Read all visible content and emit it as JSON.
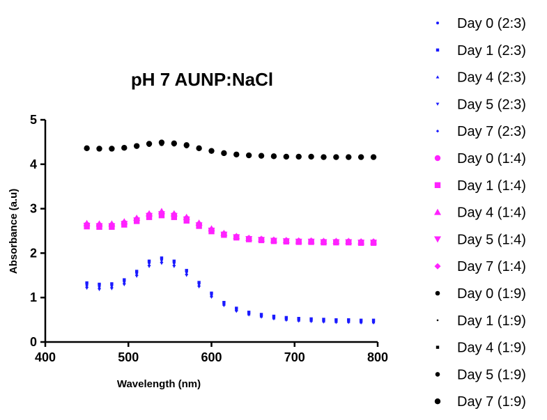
{
  "chart_data": {
    "type": "scatter",
    "title": "pH 7 AUNP:NaCl",
    "xlabel": "Wavelength (nm)",
    "ylabel": "Absorbance (a.u)",
    "xlim": [
      400,
      800
    ],
    "ylim": [
      0,
      5
    ],
    "xticks": [
      400,
      500,
      600,
      700,
      800
    ],
    "yticks": [
      0,
      1,
      2,
      3,
      4,
      5
    ],
    "grid": false,
    "legend_position": "right",
    "x": [
      450,
      465,
      480,
      495,
      510,
      525,
      540,
      555,
      570,
      585,
      600,
      615,
      630,
      645,
      660,
      675,
      690,
      705,
      720,
      735,
      750,
      765,
      780,
      795
    ],
    "series": [
      {
        "name": "Day 0 (2:3)",
        "color": "#1a1aff",
        "marker": "dot-small",
        "values": [
          1.28,
          1.25,
          1.27,
          1.36,
          1.55,
          1.78,
          1.85,
          1.78,
          1.58,
          1.31,
          1.07,
          0.87,
          0.74,
          0.65,
          0.6,
          0.56,
          0.53,
          0.51,
          0.5,
          0.49,
          0.48,
          0.48,
          0.47,
          0.47
        ]
      },
      {
        "name": "Day 1 (2:3)",
        "color": "#1a1aff",
        "marker": "square-small",
        "values": [
          1.33,
          1.3,
          1.31,
          1.4,
          1.59,
          1.82,
          1.89,
          1.82,
          1.61,
          1.34,
          1.1,
          0.89,
          0.76,
          0.67,
          0.62,
          0.58,
          0.55,
          0.53,
          0.52,
          0.51,
          0.5,
          0.5,
          0.49,
          0.49
        ]
      },
      {
        "name": "Day 4 (2:3)",
        "color": "#1a1aff",
        "marker": "triangle-up-small",
        "values": [
          1.25,
          1.22,
          1.24,
          1.33,
          1.52,
          1.74,
          1.81,
          1.74,
          1.54,
          1.28,
          1.04,
          0.85,
          0.72,
          0.63,
          0.58,
          0.54,
          0.51,
          0.49,
          0.48,
          0.47,
          0.46,
          0.46,
          0.45,
          0.45
        ]
      },
      {
        "name": "Day 5 (2:3)",
        "color": "#1a1aff",
        "marker": "triangle-down-small",
        "values": [
          1.21,
          1.18,
          1.2,
          1.29,
          1.48,
          1.7,
          1.77,
          1.7,
          1.5,
          1.24,
          1.01,
          0.82,
          0.69,
          0.61,
          0.56,
          0.52,
          0.49,
          0.47,
          0.46,
          0.45,
          0.44,
          0.44,
          0.43,
          0.43
        ]
      },
      {
        "name": "Day 7 (2:3)",
        "color": "#1a1aff",
        "marker": "diamond-small",
        "values": [
          1.23,
          1.2,
          1.22,
          1.31,
          1.5,
          1.72,
          1.79,
          1.72,
          1.52,
          1.26,
          1.02,
          0.83,
          0.7,
          0.62,
          0.57,
          0.53,
          0.5,
          0.48,
          0.47,
          0.46,
          0.45,
          0.45,
          0.44,
          0.44
        ]
      },
      {
        "name": "Day 0 (1:4)",
        "color": "#ff22ff",
        "marker": "dot",
        "values": [
          2.64,
          2.63,
          2.63,
          2.68,
          2.76,
          2.86,
          2.9,
          2.86,
          2.78,
          2.65,
          2.52,
          2.43,
          2.37,
          2.33,
          2.31,
          2.29,
          2.28,
          2.27,
          2.27,
          2.26,
          2.26,
          2.26,
          2.25,
          2.25
        ]
      },
      {
        "name": "Day 1 (1:4)",
        "color": "#ff22ff",
        "marker": "square",
        "values": [
          2.6,
          2.59,
          2.59,
          2.64,
          2.72,
          2.81,
          2.85,
          2.81,
          2.73,
          2.61,
          2.49,
          2.41,
          2.35,
          2.31,
          2.29,
          2.27,
          2.26,
          2.25,
          2.25,
          2.24,
          2.24,
          2.24,
          2.23,
          2.23
        ]
      },
      {
        "name": "Day 4 (1:4)",
        "color": "#ff22ff",
        "marker": "triangle-up",
        "values": [
          2.67,
          2.66,
          2.66,
          2.71,
          2.79,
          2.89,
          2.94,
          2.89,
          2.81,
          2.68,
          2.55,
          2.45,
          2.38,
          2.34,
          2.32,
          2.3,
          2.29,
          2.28,
          2.28,
          2.27,
          2.27,
          2.27,
          2.26,
          2.26
        ]
      },
      {
        "name": "Day 5 (1:4)",
        "color": "#ff22ff",
        "marker": "triangle-down",
        "values": [
          2.62,
          2.61,
          2.61,
          2.66,
          2.74,
          2.84,
          2.88,
          2.84,
          2.76,
          2.63,
          2.51,
          2.42,
          2.36,
          2.32,
          2.3,
          2.28,
          2.27,
          2.26,
          2.26,
          2.25,
          2.25,
          2.25,
          2.24,
          2.24
        ]
      },
      {
        "name": "Day 7 (1:4)",
        "color": "#ff22ff",
        "marker": "diamond",
        "values": [
          2.63,
          2.62,
          2.62,
          2.67,
          2.75,
          2.85,
          2.89,
          2.85,
          2.77,
          2.64,
          2.52,
          2.43,
          2.37,
          2.33,
          2.31,
          2.29,
          2.28,
          2.27,
          2.27,
          2.26,
          2.26,
          2.26,
          2.25,
          2.25
        ]
      },
      {
        "name": "Day 0 (1:9)",
        "color": "#000000",
        "marker": "dot-medium",
        "values": [
          4.35,
          4.34,
          4.34,
          4.36,
          4.4,
          4.44,
          4.46,
          4.45,
          4.41,
          4.35,
          4.29,
          4.24,
          4.21,
          4.19,
          4.18,
          4.17,
          4.16,
          4.16,
          4.16,
          4.15,
          4.15,
          4.15,
          4.15,
          4.15
        ]
      },
      {
        "name": "Day 1 (1:9)",
        "color": "#000000",
        "marker": "dot-tiny",
        "values": [
          4.34,
          4.33,
          4.33,
          4.35,
          4.39,
          4.43,
          4.45,
          4.44,
          4.4,
          4.34,
          4.28,
          4.23,
          4.2,
          4.18,
          4.17,
          4.16,
          4.15,
          4.15,
          4.15,
          4.14,
          4.14,
          4.14,
          4.14,
          4.14
        ]
      },
      {
        "name": "Day 4 (1:9)",
        "color": "#000000",
        "marker": "square-small",
        "values": [
          4.36,
          4.35,
          4.35,
          4.37,
          4.41,
          4.46,
          4.48,
          4.47,
          4.43,
          4.36,
          4.3,
          4.25,
          4.22,
          4.2,
          4.19,
          4.18,
          4.17,
          4.17,
          4.17,
          4.16,
          4.16,
          4.16,
          4.16,
          4.16
        ]
      },
      {
        "name": "Day 5 (1:9)",
        "color": "#000000",
        "marker": "dot-medium",
        "values": [
          4.35,
          4.34,
          4.34,
          4.36,
          4.4,
          4.45,
          4.47,
          4.46,
          4.42,
          4.35,
          4.29,
          4.24,
          4.21,
          4.19,
          4.18,
          4.17,
          4.16,
          4.16,
          4.16,
          4.15,
          4.15,
          4.15,
          4.15,
          4.15
        ]
      },
      {
        "name": "Day 7 (1:9)",
        "color": "#000000",
        "marker": "dot",
        "values": [
          4.36,
          4.35,
          4.35,
          4.37,
          4.41,
          4.46,
          4.49,
          4.47,
          4.43,
          4.36,
          4.3,
          4.25,
          4.22,
          4.2,
          4.19,
          4.18,
          4.17,
          4.17,
          4.17,
          4.16,
          4.16,
          4.16,
          4.16,
          4.16
        ]
      }
    ]
  }
}
